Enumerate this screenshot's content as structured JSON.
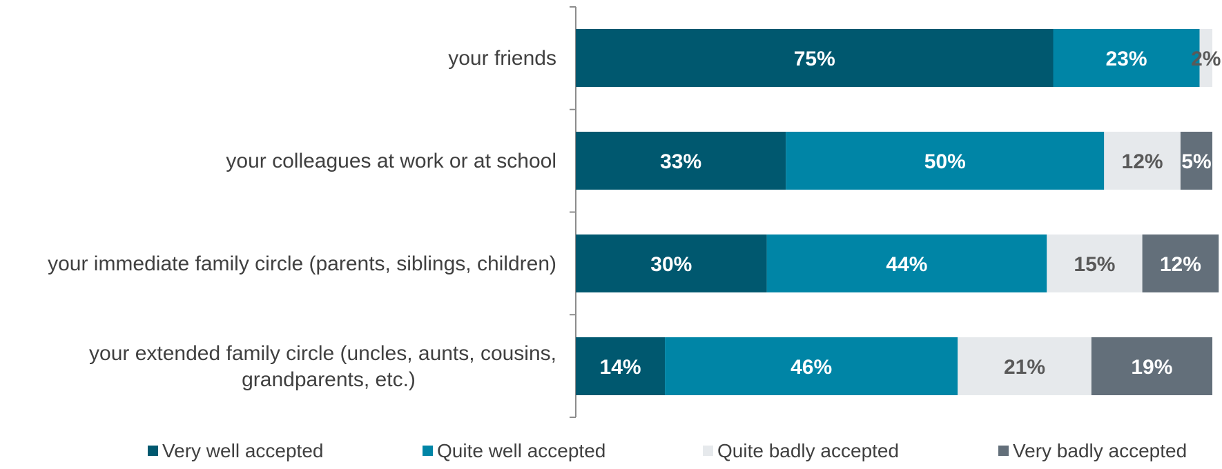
{
  "chart_data": {
    "type": "bar",
    "orientation": "horizontal",
    "stacked": true,
    "title": "",
    "xlabel": "",
    "ylabel": "",
    "xlim": [
      0,
      100
    ],
    "grid": false,
    "legend_position": "bottom",
    "categories": [
      [
        "your friends"
      ],
      [
        "your colleagues at work or at school"
      ],
      [
        "your immediate family circle (parents, siblings, children)"
      ],
      [
        "your extended family circle (uncles, aunts, cousins,",
        "grandparents, etc.)"
      ]
    ],
    "series": [
      {
        "name": "Very well accepted",
        "color": "#00586F",
        "label_color": "#ffffff",
        "values": [
          75,
          33,
          30,
          14
        ],
        "labels": [
          "75%",
          "33%",
          "30%",
          "14%"
        ]
      },
      {
        "name": "Quite well accepted",
        "color": "#0085A6",
        "label_color": "#ffffff",
        "values": [
          23,
          50,
          44,
          46
        ],
        "labels": [
          "23%",
          "50%",
          "44%",
          "46%"
        ]
      },
      {
        "name": "Quite badly accepted",
        "color": "#E6E9EC",
        "label_color": "#595959",
        "values": [
          2,
          12,
          15,
          21
        ],
        "labels": [
          "2%",
          "12%",
          "15%",
          "21%"
        ]
      },
      {
        "name": "Very badly accepted",
        "color": "#636F7A",
        "label_color": "#ffffff",
        "values": [
          0,
          5,
          12,
          19
        ],
        "labels": [
          "",
          "5%",
          "12%",
          "19%"
        ]
      }
    ]
  }
}
